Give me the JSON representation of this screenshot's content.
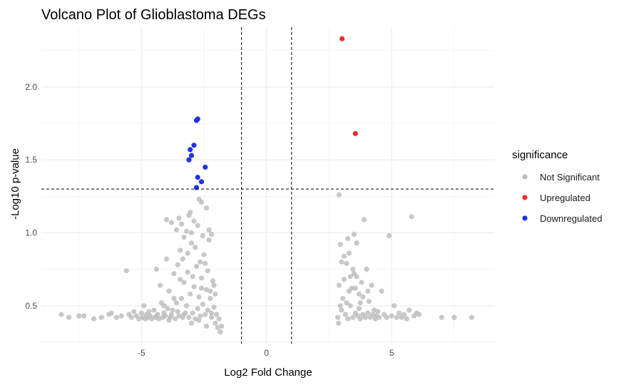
{
  "chart_data": {
    "type": "scatter",
    "title": "Volcano Plot of Glioblastoma DEGs",
    "xlabel": "Log2 Fold Change",
    "ylabel": "-Log10 p-value",
    "xlim": [
      -9,
      9.1
    ],
    "ylim": [
      0.24,
      2.41
    ],
    "x_ticks": [
      -5,
      0,
      5
    ],
    "y_ticks": [
      0.5,
      1.0,
      1.5,
      2.0
    ],
    "y_tick_labels": [
      "0.5",
      "1.0",
      "1.5",
      "2.0"
    ],
    "grid": true,
    "thresholds": {
      "vertical": [
        -1,
        1
      ],
      "horizontal": 1.3
    },
    "legend": {
      "title": "significance",
      "placement": "right",
      "entries": [
        {
          "label": "Not Significant",
          "color": "#bebebe"
        },
        {
          "label": "Upregulated",
          "color": "#ee2c2c"
        },
        {
          "label": "Downregulated",
          "color": "#2132e6"
        }
      ]
    },
    "series": [
      {
        "name": "Not Significant",
        "color": "#bebebe",
        "points": [
          [
            -8.2,
            0.44
          ],
          [
            -7.9,
            0.42
          ],
          [
            -7.5,
            0.43
          ],
          [
            -7.3,
            0.43
          ],
          [
            -6.9,
            0.41
          ],
          [
            -6.6,
            0.42
          ],
          [
            -6.3,
            0.44
          ],
          [
            -6.2,
            0.45
          ],
          [
            -6.0,
            0.42
          ],
          [
            -5.8,
            0.43
          ],
          [
            -5.6,
            0.74
          ],
          [
            -5.5,
            0.44
          ],
          [
            -5.4,
            0.42
          ],
          [
            -5.3,
            0.46
          ],
          [
            -5.2,
            0.43
          ],
          [
            -5.1,
            0.41
          ],
          [
            -5.0,
            0.45
          ],
          [
            -4.95,
            0.42
          ],
          [
            -4.9,
            0.5
          ],
          [
            -4.85,
            0.41
          ],
          [
            -4.8,
            0.44
          ],
          [
            -4.75,
            0.42
          ],
          [
            -4.7,
            0.46
          ],
          [
            -4.65,
            0.43
          ],
          [
            -4.6,
            0.41
          ],
          [
            -4.5,
            0.47
          ],
          [
            -4.45,
            0.42
          ],
          [
            -4.4,
            0.75
          ],
          [
            -4.35,
            0.44
          ],
          [
            -4.3,
            0.41
          ],
          [
            -4.25,
            0.64
          ],
          [
            -4.2,
            0.52
          ],
          [
            -4.15,
            0.42
          ],
          [
            -4.1,
            0.45
          ],
          [
            -4.05,
            0.43
          ],
          [
            -4.0,
            0.82
          ],
          [
            -3.95,
            0.48
          ],
          [
            -3.9,
            0.6
          ],
          [
            -3.85,
            0.42
          ],
          [
            -3.8,
            0.44
          ],
          [
            -3.75,
            0.47
          ],
          [
            -3.7,
            0.72
          ],
          [
            -3.65,
            0.41
          ],
          [
            -3.6,
            0.52
          ],
          [
            -3.55,
            0.46
          ],
          [
            -3.5,
            0.43
          ],
          [
            -3.45,
            0.88
          ],
          [
            -3.4,
            0.55
          ],
          [
            -3.35,
            0.42
          ],
          [
            -3.3,
            0.66
          ],
          [
            -3.25,
            0.45
          ],
          [
            -3.2,
            0.5
          ],
          [
            -3.15,
            0.73
          ],
          [
            -3.1,
            0.42
          ],
          [
            -3.05,
            0.58
          ],
          [
            -3.0,
            0.93
          ],
          [
            -2.95,
            0.45
          ],
          [
            -2.9,
            0.63
          ],
          [
            -2.85,
            0.41
          ],
          [
            -2.8,
            0.77
          ],
          [
            -2.75,
            0.48
          ],
          [
            -2.7,
            0.56
          ],
          [
            -2.65,
            0.43
          ],
          [
            -2.6,
            0.69
          ],
          [
            -2.55,
            0.51
          ],
          [
            -2.5,
            0.85
          ],
          [
            -2.45,
            0.44
          ],
          [
            -2.4,
            0.61
          ],
          [
            -2.35,
            0.47
          ],
          [
            -2.3,
            0.95
          ],
          [
            -2.25,
            0.55
          ],
          [
            -2.2,
            0.42
          ],
          [
            -2.15,
            0.67
          ],
          [
            -2.1,
            0.49
          ],
          [
            -2.05,
            0.38
          ],
          [
            -2.0,
            0.44
          ],
          [
            -1.95,
            0.35
          ],
          [
            -1.9,
            0.41
          ],
          [
            -1.85,
            0.32
          ],
          [
            -1.8,
            0.36
          ],
          [
            -4.0,
            1.09
          ],
          [
            -3.8,
            1.07
          ],
          [
            -3.6,
            1.02
          ],
          [
            -3.5,
            1.1
          ],
          [
            -3.4,
            1.06
          ],
          [
            -3.1,
            1.12
          ],
          [
            -3.0,
            1.0
          ],
          [
            -2.9,
            1.08
          ],
          [
            -2.6,
            1.21
          ],
          [
            -2.4,
            1.17
          ],
          [
            -2.3,
            1.02
          ],
          [
            -2.2,
            0.99
          ],
          [
            -3.2,
            1.01
          ],
          [
            -2.75,
            1.05
          ],
          [
            -3.3,
            0.97
          ],
          [
            -2.55,
            0.98
          ],
          [
            -3.15,
            0.86
          ],
          [
            -2.85,
            0.9
          ],
          [
            -2.65,
            0.8
          ],
          [
            -2.45,
            0.79
          ],
          [
            -3.35,
            0.82
          ],
          [
            -3.55,
            0.78
          ],
          [
            -2.95,
            0.7
          ],
          [
            -2.35,
            0.74
          ],
          [
            -3.45,
            0.68
          ],
          [
            -2.05,
            0.58
          ],
          [
            -2.1,
            0.64
          ],
          [
            -2.25,
            0.6
          ],
          [
            -3.7,
            0.55
          ],
          [
            -4.1,
            0.5
          ],
          [
            -2.7,
            1.23
          ],
          [
            -3.05,
            1.14
          ],
          [
            -2.6,
            0.62
          ],
          [
            -2.2,
            0.45
          ],
          [
            -2.7,
            0.4
          ],
          [
            -3.0,
            0.38
          ],
          [
            -3.3,
            0.44
          ],
          [
            -3.9,
            0.4
          ],
          [
            -4.4,
            0.43
          ],
          [
            -2.4,
            0.36
          ],
          [
            2.9,
            1.26
          ],
          [
            2.85,
            0.42
          ],
          [
            2.88,
            0.38
          ],
          [
            2.95,
            0.92
          ],
          [
            3.0,
            0.47
          ],
          [
            3.05,
            0.55
          ],
          [
            3.1,
            0.68
          ],
          [
            3.15,
            0.44
          ],
          [
            3.2,
            0.79
          ],
          [
            3.25,
            0.41
          ],
          [
            3.3,
            0.86
          ],
          [
            3.35,
            0.5
          ],
          [
            3.4,
            0.62
          ],
          [
            3.45,
            0.42
          ],
          [
            3.5,
            0.72
          ],
          [
            3.55,
            0.45
          ],
          [
            3.6,
            0.93
          ],
          [
            3.65,
            0.43
          ],
          [
            3.7,
            0.58
          ],
          [
            3.75,
            0.41
          ],
          [
            3.8,
            0.66
          ],
          [
            3.85,
            0.44
          ],
          [
            3.9,
            1.09
          ],
          [
            3.95,
            0.42
          ],
          [
            4.0,
            0.75
          ],
          [
            4.05,
            0.45
          ],
          [
            4.1,
            0.53
          ],
          [
            4.15,
            0.42
          ],
          [
            4.2,
            0.64
          ],
          [
            4.25,
            0.44
          ],
          [
            4.3,
            0.47
          ],
          [
            4.35,
            0.41
          ],
          [
            4.4,
            0.43
          ],
          [
            4.45,
            0.46
          ],
          [
            4.5,
            0.42
          ],
          [
            4.6,
            0.6
          ],
          [
            4.7,
            0.44
          ],
          [
            4.8,
            0.42
          ],
          [
            4.9,
            0.98
          ],
          [
            5.0,
            0.43
          ],
          [
            5.1,
            0.5
          ],
          [
            5.2,
            0.42
          ],
          [
            5.3,
            0.45
          ],
          [
            5.4,
            0.42
          ],
          [
            5.5,
            0.44
          ],
          [
            5.6,
            0.41
          ],
          [
            5.7,
            0.47
          ],
          [
            5.8,
            1.11
          ],
          [
            5.9,
            0.43
          ],
          [
            6.0,
            0.45
          ],
          [
            6.1,
            0.44
          ],
          [
            7.0,
            0.42
          ],
          [
            7.5,
            0.42
          ],
          [
            8.2,
            0.42
          ],
          [
            2.9,
            0.64
          ],
          [
            3.3,
            0.6
          ],
          [
            3.6,
            0.7
          ],
          [
            3.2,
            0.52
          ],
          [
            3.7,
            0.48
          ],
          [
            3.1,
            0.84
          ],
          [
            3.45,
            0.75
          ],
          [
            3.85,
            0.56
          ],
          [
            2.95,
            0.5
          ],
          [
            3.55,
            0.62
          ],
          [
            4.05,
            0.6
          ],
          [
            3.25,
            0.96
          ],
          [
            3.75,
            0.52
          ],
          [
            3.5,
            0.99
          ],
          [
            3.0,
            0.8
          ],
          [
            3.35,
            0.7
          ]
        ]
      },
      {
        "name": "Upregulated",
        "color": "#ee2c2c",
        "points": [
          [
            3.02,
            2.33
          ],
          [
            3.55,
            1.68
          ]
        ]
      },
      {
        "name": "Downregulated",
        "color": "#2132e6",
        "points": [
          [
            -2.75,
            1.78
          ],
          [
            -2.8,
            1.77
          ],
          [
            -2.9,
            1.6
          ],
          [
            -3.05,
            1.57
          ],
          [
            -3.0,
            1.53
          ],
          [
            -3.1,
            1.5
          ],
          [
            -2.45,
            1.45
          ],
          [
            -2.75,
            1.38
          ],
          [
            -2.6,
            1.35
          ],
          [
            -2.8,
            1.31
          ]
        ]
      }
    ]
  }
}
